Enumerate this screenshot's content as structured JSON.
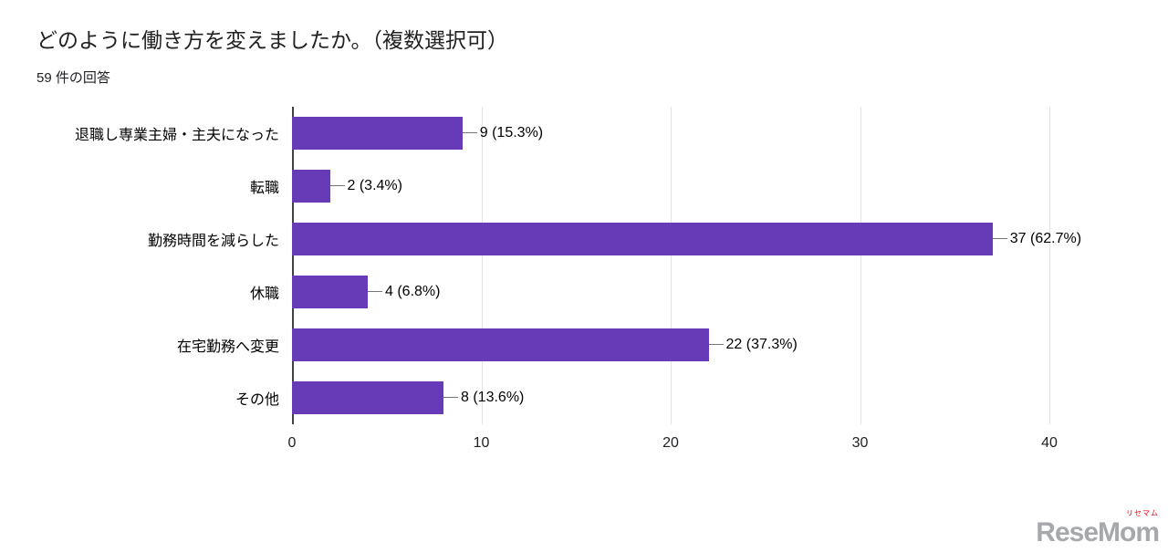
{
  "header": {
    "title": "どのように働き方を変えましたか。（複数選択可）",
    "subtitle": "59 件の回答"
  },
  "chart_data": {
    "type": "bar",
    "orientation": "horizontal",
    "title": "どのように働き方を変えましたか。（複数選択可）",
    "subtitle": "59 件の回答",
    "categories": [
      "退職し専業主婦・主夫になった",
      "転職",
      "勤務時間を減らした",
      "休職",
      "在宅勤務へ変更",
      "その他"
    ],
    "values": [
      9,
      2,
      37,
      4,
      22,
      8
    ],
    "value_labels": [
      "9 (15.3%)",
      "2 (3.4%)",
      "37 (62.7%)",
      "4 (6.8%)",
      "22 (37.3%)",
      "8 (13.6%)"
    ],
    "xlim": [
      0,
      40
    ],
    "xticks": [
      0,
      10,
      20,
      30,
      40
    ],
    "xlabel": "",
    "ylabel": "",
    "grid": true,
    "legend": false,
    "bar_color": "#673ab7",
    "gridline_color": "#e3e3e3",
    "axis_color": "#424242"
  },
  "watermark": {
    "text": "ReseMom",
    "sub": "リセマム",
    "color": "#a6a8ab",
    "accent": "#e60012"
  }
}
